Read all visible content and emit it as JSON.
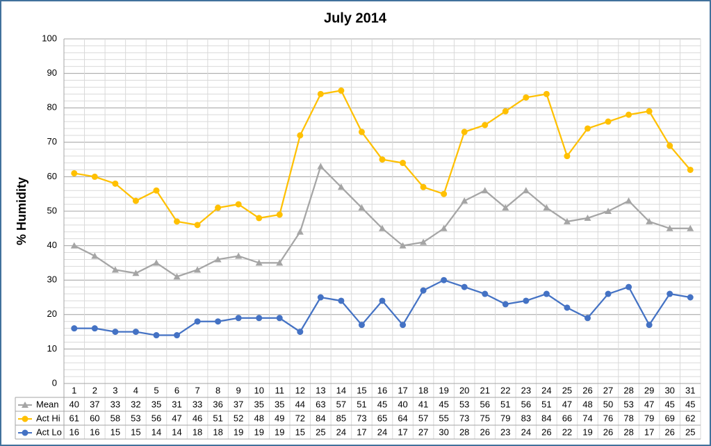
{
  "chart_data": {
    "type": "line",
    "title": "July 2014",
    "y_label": "% Humidity",
    "categories": [
      "1",
      "2",
      "3",
      "4",
      "5",
      "6",
      "7",
      "8",
      "9",
      "10",
      "11",
      "12",
      "13",
      "14",
      "15",
      "16",
      "17",
      "18",
      "19",
      "20",
      "21",
      "22",
      "23",
      "24",
      "25",
      "26",
      "27",
      "28",
      "29",
      "30",
      "31"
    ],
    "series": [
      {
        "name": "Mean",
        "color": "#a5a5a5",
        "marker": "triangle",
        "values": [
          40,
          37,
          33,
          32,
          35,
          31,
          33,
          36,
          37,
          35,
          35,
          44,
          63,
          57,
          51,
          45,
          40,
          41,
          45,
          53,
          56,
          51,
          56,
          51,
          47,
          48,
          50,
          53,
          47,
          45,
          45
        ]
      },
      {
        "name": "Act Hi",
        "color": "#ffc000",
        "marker": "circle",
        "values": [
          61,
          60,
          58,
          53,
          56,
          47,
          46,
          51,
          52,
          48,
          49,
          72,
          84,
          85,
          73,
          65,
          64,
          57,
          55,
          73,
          75,
          79,
          83,
          84,
          66,
          74,
          76,
          78,
          79,
          69,
          62
        ]
      },
      {
        "name": "Act Lo",
        "color": "#4472c4",
        "marker": "circle",
        "values": [
          16,
          16,
          15,
          15,
          14,
          14,
          18,
          18,
          19,
          19,
          19,
          15,
          25,
          24,
          17,
          24,
          17,
          27,
          30,
          28,
          26,
          23,
          24,
          26,
          22,
          19,
          26,
          28,
          17,
          26,
          25
        ]
      }
    ],
    "ylim": [
      0,
      100
    ],
    "yticks": [
      0,
      10,
      20,
      30,
      40,
      50,
      60,
      70,
      80,
      90,
      100
    ],
    "grid": true,
    "minor_grid_step": 2,
    "data_table": true
  }
}
